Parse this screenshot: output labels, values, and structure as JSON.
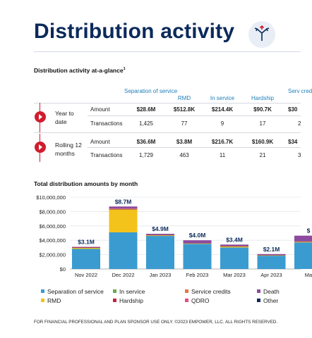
{
  "header": {
    "title": "Distribution activity",
    "icon": "split-arrows-icon"
  },
  "glance": {
    "label": "Distribution activity at-a-glance",
    "footnote_mark": "1",
    "columns": [
      "Separation of service",
      "RMD",
      "In service",
      "Hardship",
      "Serv cred"
    ],
    "groups": [
      {
        "label": "Year to date",
        "rows": [
          {
            "type": "Amount",
            "values": [
              "$28.6M",
              "$512.8K",
              "$214.4K",
              "$90.7K",
              "$30"
            ]
          },
          {
            "type": "Transactions",
            "values": [
              "1,425",
              "77",
              "9",
              "17",
              "2"
            ]
          }
        ]
      },
      {
        "label": "Rolling 12 months",
        "rows": [
          {
            "type": "Amount",
            "values": [
              "$36.6M",
              "$3.8M",
              "$216.7K",
              "$160.9K",
              "$34"
            ]
          },
          {
            "type": "Transactions",
            "values": [
              "1,729",
              "463",
              "11",
              "21",
              "3"
            ]
          }
        ]
      }
    ]
  },
  "chart_section": {
    "label": "Total distribution amounts by month"
  },
  "chart_data": {
    "type": "bar",
    "stacked": true,
    "title": "Total distribution amounts by month",
    "xlabel": "",
    "ylabel": "",
    "ylim": [
      0,
      10000000
    ],
    "yticks": [
      "$10,000,000",
      "$8,000,000",
      "$6,000,000",
      "$4,000,000",
      "$2,000,000",
      "$0"
    ],
    "categories": [
      "Nov 2022",
      "Dec 2022",
      "Jan 2023",
      "Feb 2023",
      "Mar 2023",
      "Apr 2023",
      "Ma"
    ],
    "totals": [
      "$3.1M",
      "$8.7M",
      "$4.9M",
      "$4.0M",
      "$3.4M",
      "$2.1M",
      "$"
    ],
    "series": [
      {
        "name": "Separation of service",
        "color": "#3a9bd0",
        "values": [
          2800000,
          5100000,
          4600000,
          3500000,
          3000000,
          1850000,
          3700000
        ]
      },
      {
        "name": "RMD",
        "color": "#f3c21b",
        "values": [
          150000,
          3200000,
          100000,
          60000,
          150000,
          60000,
          100000
        ]
      },
      {
        "name": "In service",
        "color": "#6aa84f",
        "values": [
          20000,
          20000,
          20000,
          20000,
          20000,
          20000,
          20000
        ]
      },
      {
        "name": "Hardship",
        "color": "#c0243a",
        "values": [
          20000,
          20000,
          20000,
          20000,
          20000,
          20000,
          20000
        ]
      },
      {
        "name": "Service credits",
        "color": "#e8734a",
        "values": [
          0,
          60000,
          0,
          0,
          0,
          0,
          0
        ]
      },
      {
        "name": "QDRO",
        "color": "#e64a7b",
        "values": [
          0,
          0,
          0,
          0,
          0,
          0,
          0
        ]
      },
      {
        "name": "Death",
        "color": "#8e4a9e",
        "values": [
          90000,
          300000,
          160000,
          400000,
          210000,
          130000,
          800000
        ]
      },
      {
        "name": "Other",
        "color": "#0b2a5b",
        "values": [
          0,
          0,
          0,
          0,
          0,
          0,
          0
        ]
      }
    ],
    "legend_position": "bottom"
  },
  "legend": {
    "items": [
      {
        "label": "Separation of service",
        "color": "#3a9bd0"
      },
      {
        "label": "In service",
        "color": "#6aa84f"
      },
      {
        "label": "Service credits",
        "color": "#e8734a"
      },
      {
        "label": "Death",
        "color": "#8e4a9e"
      },
      {
        "label": "RMD",
        "color": "#f3c21b"
      },
      {
        "label": "Hardship",
        "color": "#c0243a"
      },
      {
        "label": "QDRO",
        "color": "#e64a7b"
      },
      {
        "label": "Other",
        "color": "#0b2a5b"
      }
    ]
  },
  "footer": {
    "text": "FOR FINANCIAL PROFESSIONAL AND PLAN SPONSOR USE ONLY. ©2023 EMPOWER, LLC. ALL RIGHTS RESERVED."
  }
}
